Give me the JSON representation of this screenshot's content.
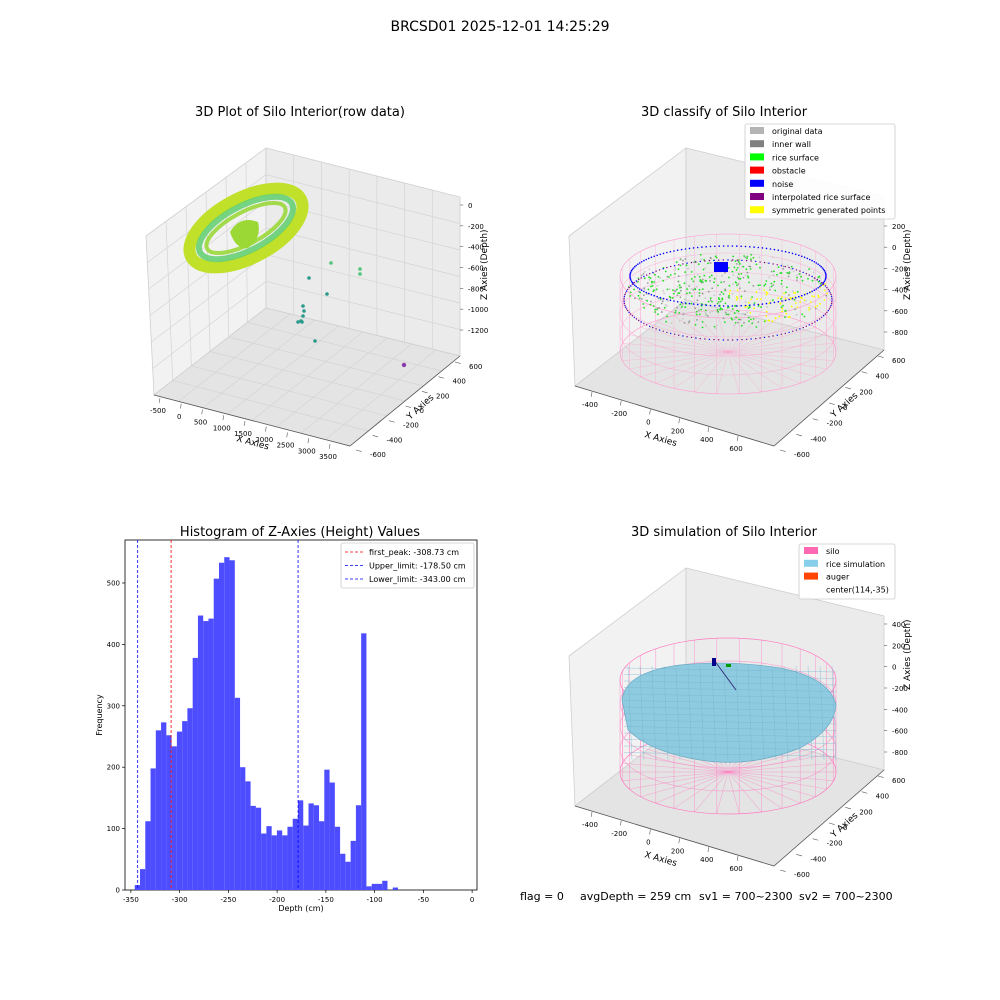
{
  "figure_title": "BRCSD01 2025-12-01 14:25:29",
  "footer": {
    "flag": "flag = 0",
    "avg_depth": "avgDepth = 259 cm",
    "sv1": "sv1 = 700~2300",
    "sv2": "sv2 = 700~2300"
  },
  "panel_raw": {
    "title": "3D Plot of Silo Interior(row data)",
    "xlabel": "X Axies",
    "ylabel": "Y Axies",
    "zlabel": "Z Axies (Depth)",
    "x_ticks": [
      "-500",
      "0",
      "500",
      "1000",
      "1500",
      "2000",
      "2500",
      "3000",
      "3500"
    ],
    "y_ticks": [
      "-600",
      "-400",
      "-200",
      "0",
      "200",
      "400",
      "600"
    ],
    "z_ticks": [
      "0",
      "-200",
      "-400",
      "-600",
      "-800",
      "-1000",
      "-1200"
    ],
    "colors": {
      "main": "#a8de2a",
      "inner": "#4fc47a",
      "outlier": "#2a9a8c",
      "far": "#8a3aa8"
    }
  },
  "panel_classify": {
    "title": "3D classify of Silo Interior",
    "xlabel": "X Axies",
    "ylabel": "Y Axies",
    "zlabel": "Z Axies (Depth)",
    "x_ticks": [
      "-400",
      "-200",
      "0",
      "200",
      "400",
      "600"
    ],
    "y_ticks": [
      "-600",
      "-400",
      "-200",
      "0",
      "200",
      "400",
      "600"
    ],
    "z_ticks": [
      "200",
      "0",
      "-200",
      "-400",
      "-600",
      "-800"
    ],
    "legend": [
      {
        "label": "original data",
        "color": "#b4b4b4"
      },
      {
        "label": "inner wall",
        "color": "#808080"
      },
      {
        "label": "rice surface",
        "color": "#00ff00"
      },
      {
        "label": "obstacle",
        "color": "#ff0000"
      },
      {
        "label": "noise",
        "color": "#0000ff"
      },
      {
        "label": "interpolated rice surface",
        "color": "#800080"
      },
      {
        "label": "symmetric generated points",
        "color": "#ffff00"
      }
    ]
  },
  "panel_sim": {
    "title": "3D simulation of Silo Interior",
    "xlabel": "X Axies",
    "ylabel": "Y Axies",
    "zlabel": "Z Axies (Depth)",
    "x_ticks": [
      "-400",
      "-200",
      "0",
      "200",
      "400",
      "600"
    ],
    "y_ticks": [
      "-600",
      "-400",
      "-200",
      "0",
      "200",
      "400",
      "600"
    ],
    "z_ticks": [
      "400",
      "200",
      "0",
      "-200",
      "-400",
      "-600",
      "-800"
    ],
    "legend": [
      {
        "label": "silo",
        "color": "#ff69b4"
      },
      {
        "label": "rice simulation",
        "color": "#87ceeb"
      },
      {
        "label": "auger",
        "color": "#ff4500"
      },
      {
        "label": "center(114,-35)",
        "color": null
      }
    ]
  },
  "chart_data": {
    "type": "bar",
    "title": "Histogram of Z-Axies (Height) Values",
    "xlabel": "Depth (cm)",
    "ylabel": "Frequency",
    "xlim": [
      -356,
      5
    ],
    "ylim": [
      0,
      570
    ],
    "x_ticks": [
      -350,
      -300,
      -250,
      -200,
      -150,
      -100,
      -50,
      0
    ],
    "y_ticks": [
      0,
      100,
      200,
      300,
      400,
      500
    ],
    "bar_color": "#4d4dff",
    "bin_width": 5.4,
    "bin_start": -346.0,
    "values": [
      8,
      34,
      112,
      198,
      260,
      273,
      252,
      234,
      258,
      275,
      296,
      378,
      447,
      438,
      442,
      507,
      533,
      542,
      537,
      313,
      200,
      177,
      137,
      134,
      92,
      104,
      89,
      97,
      89,
      103,
      116,
      146,
      105,
      141,
      138,
      112,
      196,
      175,
      103,
      59,
      46,
      80,
      138,
      418,
      6,
      10,
      10,
      15,
      0,
      4
    ],
    "lines": [
      {
        "label": "first_peak: -308.73 cm",
        "x": -308.73,
        "color": "#ff0000"
      },
      {
        "label": "Upper_limit: -178.50 cm",
        "x": -178.5,
        "color": "#0000ff"
      },
      {
        "label": "Lower_limit: -343.00 cm",
        "x": -343.0,
        "color": "#0000ff"
      }
    ],
    "grid": false,
    "legend_position": "top-right"
  }
}
